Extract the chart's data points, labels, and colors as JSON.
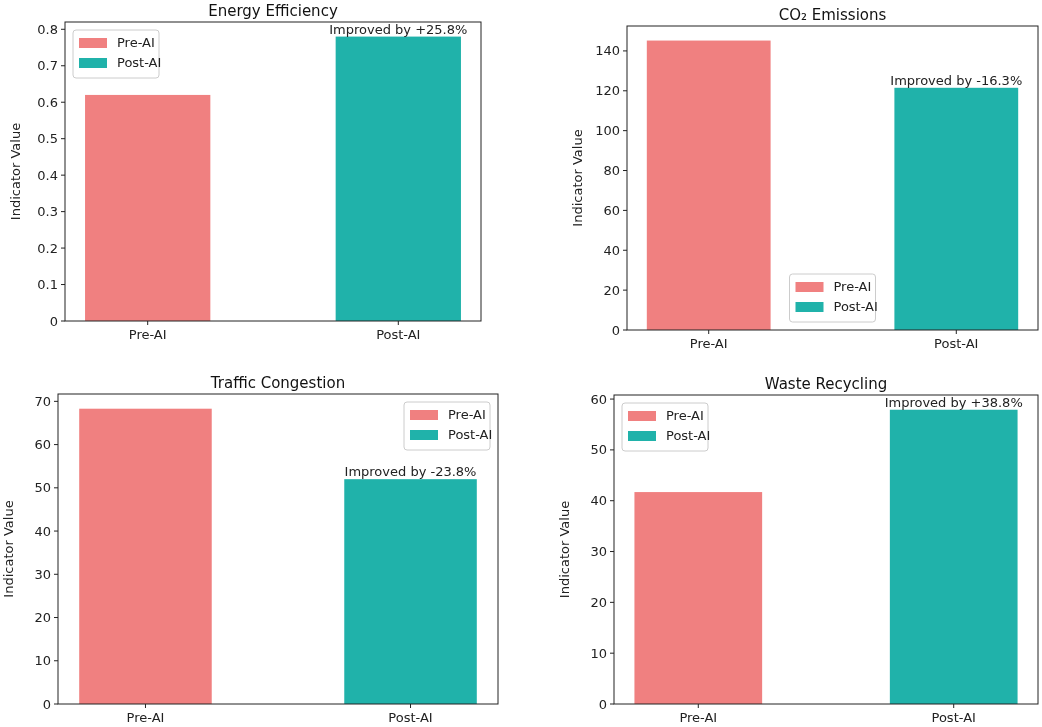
{
  "chart_data": [
    {
      "type": "bar",
      "title": "Energy Efficiency",
      "ylabel": "Indicator Value",
      "categories": [
        "Pre-AI",
        "Post-AI"
      ],
      "series": [
        {
          "name": "Pre-AI",
          "color": "#f08080",
          "values": [
            0.62,
            null
          ]
        },
        {
          "name": "Post-AI",
          "color": "#20b2aa",
          "values": [
            null,
            0.78
          ]
        }
      ],
      "ylim": [
        0,
        0.82
      ],
      "yticks": [
        0.0,
        0.1,
        0.2,
        0.3,
        0.4,
        0.5,
        0.6,
        0.7,
        0.8
      ],
      "legend": "top left",
      "annotations": [
        {
          "text": "Improved by +25.8%",
          "x": "Post-AI",
          "y": 0.78
        }
      ]
    },
    {
      "type": "bar",
      "title": "CO₂ Emissions",
      "ylabel": "Indicator Value",
      "categories": [
        "Pre-AI",
        "Post-AI"
      ],
      "series": [
        {
          "name": "Pre-AI",
          "color": "#f08080",
          "values": [
            145.2,
            null
          ]
        },
        {
          "name": "Post-AI",
          "color": "#20b2aa",
          "values": [
            null,
            121.5
          ]
        }
      ],
      "ylim": [
        0,
        152.5
      ],
      "yticks": [
        0,
        20,
        40,
        60,
        80,
        100,
        120,
        140
      ],
      "legend": "bottom",
      "annotations": [
        {
          "text": "Improved by -16.3%",
          "x": "Post-AI",
          "y": 121.5
        }
      ]
    },
    {
      "type": "bar",
      "title": "Traffic Congestion",
      "ylabel": "Indicator Value",
      "categories": [
        "Pre-AI",
        "Post-AI"
      ],
      "series": [
        {
          "name": "Pre-AI",
          "color": "#f08080",
          "values": [
            68.3,
            null
          ]
        },
        {
          "name": "Post-AI",
          "color": "#20b2aa",
          "values": [
            null,
            52.0
          ]
        }
      ],
      "ylim": [
        0,
        71.7
      ],
      "yticks": [
        0,
        10,
        20,
        30,
        40,
        50,
        60,
        70
      ],
      "legend": "top right",
      "annotations": [
        {
          "text": "Improved by -23.8%",
          "x": "Post-AI",
          "y": 52.0
        }
      ]
    },
    {
      "type": "bar",
      "title": "Waste Recycling",
      "ylabel": "Indicator Value",
      "categories": [
        "Pre-AI",
        "Post-AI"
      ],
      "series": [
        {
          "name": "Pre-AI",
          "color": "#f08080",
          "values": [
            41.7,
            null
          ]
        },
        {
          "name": "Post-AI",
          "color": "#20b2aa",
          "values": [
            null,
            57.9
          ]
        }
      ],
      "ylim": [
        0,
        60.8
      ],
      "yticks": [
        0,
        10,
        20,
        30,
        40,
        50,
        60
      ],
      "legend": "top left",
      "annotations": [
        {
          "text": "Improved by +38.8%",
          "x": "Post-AI",
          "y": 57.9
        }
      ]
    }
  ]
}
